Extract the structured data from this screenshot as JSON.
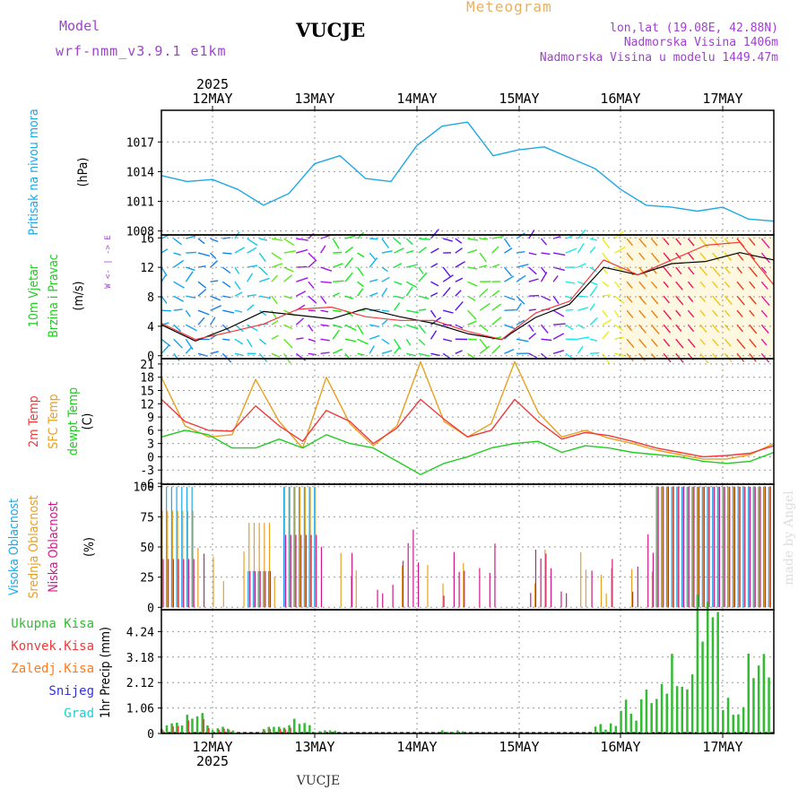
{
  "header": {
    "model_label": "Model",
    "model_name": "wrf-nmm_v3.9.1  e1km",
    "station": "VUCJE",
    "meteogram": "Meteogram",
    "coords": "lon,lat (19.08E, 42.88N)",
    "elev": "Nadmorska Visina 1406m",
    "elev_model": "Nadmorska Visina u modelu 1449.47m"
  },
  "footer": {
    "station": "VUCJE",
    "credit": "made by Angel"
  },
  "colors": {
    "pressure": "#1ea8e6",
    "temp2m": "#ee3a3a",
    "sfc": "#e8a020",
    "dewpt": "#22cc22",
    "cloud_high": "#1ea8e6",
    "cloud_mid": "#e8a020",
    "cloud_low": "#cc1a8a",
    "rain": "#33bb33",
    "conv": "#ee3a3a",
    "freezing": "#ff7a1a",
    "snow": "#3333dd",
    "grad": "#22cccc",
    "wind_label": "#22cc22",
    "purple": "#a040d0"
  },
  "chart_data": [
    {
      "type": "line",
      "panel": "pressure",
      "ylabel": [
        "Pritisak na nivou mora",
        "(hPa)"
      ],
      "yticks": [
        1008,
        1011,
        1014,
        1017
      ],
      "ylim": [
        1007.6,
        1020.2
      ],
      "x_start": "2025-05-11T12:00",
      "step_hours": 6,
      "series": [
        {
          "values": [
            1013.6,
            1013.0,
            1013.2,
            1012.2,
            1010.6,
            1011.8,
            1014.8,
            1015.6,
            1013.3,
            1013.0,
            1016.6,
            1018.6,
            1019.0,
            1015.6,
            1016.2,
            1016.5,
            1015.4,
            1014.3,
            1012.2,
            1010.6,
            1010.4,
            1010.0,
            1010.4,
            1009.2,
            1009.0
          ]
        }
      ]
    },
    {
      "type": "line",
      "panel": "wind",
      "ylabel": [
        "10m Vjetar",
        "Brzina i Pravac",
        "(m/s)"
      ],
      "direction_key": [
        "W",
        "<-",
        "|",
        "->",
        "E"
      ],
      "yticks": [
        0,
        4,
        8,
        12,
        16
      ],
      "ylim": [
        -0.4,
        16.4
      ],
      "x_start": "2025-05-11T12:00",
      "step_hours": 6,
      "series": [
        {
          "name": "mean",
          "values": [
            4.2,
            2.0,
            3.8,
            6.0,
            5.5,
            5.0,
            6.4,
            5.3,
            4.4,
            3.0,
            2.2,
            5.2,
            7.0,
            12.0,
            11.0,
            12.5,
            12.8,
            14.0,
            13.0
          ]
        },
        {
          "name": "gust",
          "values": [
            4.4,
            2.2,
            3.2,
            4.3,
            6.3,
            6.6,
            5.3,
            4.8,
            4.8,
            3.3,
            2.2,
            5.8,
            7.4,
            13.0,
            11.0,
            13.0,
            15.0,
            15.4,
            9.6
          ]
        }
      ]
    },
    {
      "type": "line",
      "panel": "temperature",
      "ylabel": [
        "2m Temp",
        "SFC Temp",
        "dewpt Temp",
        "(C)"
      ],
      "yticks": [
        -6,
        -3,
        0,
        3,
        6,
        9,
        12,
        15,
        18,
        21
      ],
      "ylim": [
        -6.2,
        22.2
      ],
      "x_start": "2025-05-11T12:00",
      "step_hours": 6,
      "series": [
        {
          "name": "2m Temp",
          "values": [
            13.0,
            8.0,
            6.0,
            5.8,
            11.5,
            7.0,
            3.5,
            10.5,
            8.0,
            3.0,
            6.5,
            13.0,
            8.5,
            4.5,
            6.0,
            13.0,
            8.0,
            4.0,
            5.5,
            4.8,
            3.5,
            2.0,
            1.0,
            0.0,
            0.3,
            0.8,
            2.5
          ]
        },
        {
          "name": "SFC Temp",
          "values": [
            18.0,
            7.0,
            4.5,
            5.0,
            17.5,
            8.0,
            2.0,
            18.0,
            7.5,
            2.5,
            7.0,
            21.5,
            8.0,
            4.5,
            7.5,
            21.5,
            10.0,
            4.5,
            6.0,
            4.2,
            3.0,
            1.5,
            0.5,
            -0.5,
            -0.5,
            0.5,
            3.0
          ]
        },
        {
          "name": "dewpt Temp",
          "values": [
            4.5,
            6.0,
            5.0,
            2.0,
            2.0,
            4.0,
            2.0,
            5.0,
            3.0,
            2.0,
            -1.0,
            -4.0,
            -1.5,
            0.0,
            2.0,
            3.0,
            3.5,
            1.0,
            2.5,
            2.0,
            1.0,
            0.5,
            0.0,
            -1.0,
            -1.5,
            -1.0,
            1.0
          ]
        }
      ]
    },
    {
      "type": "bar",
      "panel": "clouds",
      "ylabel": [
        "Visoka Oblacnost",
        "Srednja Oblacnost",
        "Niska Oblacnost",
        "(%)"
      ],
      "yticks": [
        0,
        25,
        50,
        75,
        100
      ],
      "ylim": [
        -2,
        102
      ],
      "x_start": "2025-05-11T12:00",
      "step_hours": 6
    },
    {
      "type": "bar",
      "panel": "precipitation",
      "ylabel": [
        "1hr Precip (mm)"
      ],
      "legend": [
        "Ukupna Kisa",
        "Konvek.Kisa",
        "Zaledj.Kisa",
        "Snijeg",
        "Grad"
      ],
      "yticks": [
        0,
        1.06,
        2.12,
        3.18,
        4.24
      ],
      "ylim": [
        0,
        5.15
      ],
      "x_start": "2025-05-11T12:00",
      "step_hours": 6,
      "series": [
        {
          "name": "Ukupna Kisa",
          "values": [
            0.3,
            0.6,
            0.2,
            0,
            0.2,
            0.5,
            0.1,
            0,
            0,
            0,
            0,
            0.1,
            0,
            0,
            0,
            0,
            0,
            0.3,
            1.0,
            1.7,
            3.0,
            4.9,
            1.0,
            2.3
          ]
        }
      ]
    }
  ],
  "xaxis": {
    "labels": [
      "12MAY",
      "13MAY",
      "14MAY",
      "15MAY",
      "16MAY",
      "17MAY"
    ],
    "year": "2025"
  }
}
